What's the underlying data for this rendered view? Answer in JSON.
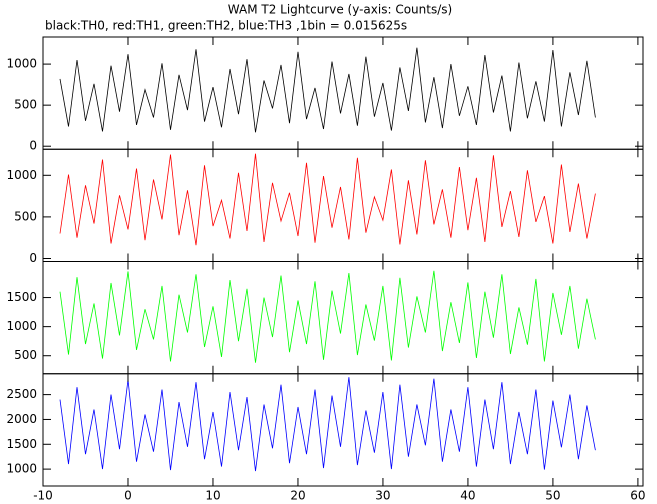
{
  "chart_data": {
    "type": "line",
    "title": "WAM T2 Lightcurve (y-axis: Counts/s)",
    "subtitle": "black:TH0, red:TH1, green:TH2, blue:TH3 ,1bin = 0.015625s",
    "xlim": [
      -10,
      60.6
    ],
    "xticks": [
      -10,
      0,
      10,
      20,
      30,
      40,
      50,
      60
    ],
    "x": [
      -8,
      -7,
      -6,
      -5,
      -4,
      -3,
      -2,
      -1,
      0,
      1,
      2,
      3,
      4,
      5,
      6,
      7,
      8,
      9,
      10,
      11,
      12,
      13,
      14,
      15,
      16,
      17,
      18,
      19,
      20,
      21,
      22,
      23,
      24,
      25,
      26,
      27,
      28,
      29,
      30,
      31,
      32,
      33,
      34,
      35,
      36,
      37,
      38,
      39,
      40,
      41,
      42,
      43,
      44,
      45,
      46,
      47,
      48,
      49,
      50,
      51,
      52,
      53,
      54,
      55
    ],
    "series": [
      {
        "color": "#000000",
        "ylim": [
          -37,
          1330
        ],
        "yticks": [
          0,
          500,
          1000
        ],
        "values": [
          820,
          240,
          1050,
          310,
          760,
          180,
          980,
          420,
          1120,
          260,
          690,
          350,
          1010,
          200,
          870,
          440,
          1180,
          300,
          720,
          230,
          940,
          390,
          1060,
          170,
          800,
          460,
          990,
          280,
          1150,
          330,
          710,
          210,
          1030,
          400,
          880,
          250,
          1090,
          360,
          770,
          190,
          960,
          430,
          1200,
          290,
          840,
          220,
          1000,
          370,
          730,
          260,
          1110,
          410,
          860,
          180,
          1020,
          340,
          790,
          300,
          1170,
          240,
          900,
          380,
          1040,
          350
        ]
      },
      {
        "color": "#ff0000",
        "ylim": [
          -36,
          1313
        ],
        "yticks": [
          0,
          500,
          1000
        ],
        "values": [
          300,
          1010,
          250,
          880,
          420,
          1190,
          180,
          760,
          350,
          1080,
          220,
          950,
          470,
          1250,
          280,
          820,
          160,
          1120,
          390,
          700,
          240,
          1030,
          330,
          1260,
          200,
          910,
          450,
          790,
          270,
          1150,
          190,
          990,
          370,
          860,
          230,
          1210,
          310,
          740,
          460,
          1070,
          170,
          940,
          290,
          1180,
          410,
          830,
          250,
          1100,
          340,
          970,
          200,
          1240,
          380,
          810,
          260,
          1060,
          440,
          750,
          180,
          1130,
          320,
          900,
          240,
          780
        ]
      },
      {
        "color": "#00ff00",
        "ylim": [
          190,
          2120
        ],
        "yticks": [
          500,
          1000,
          1500
        ],
        "values": [
          1600,
          520,
          1850,
          700,
          1400,
          450,
          1750,
          850,
          1950,
          600,
          1300,
          780,
          1700,
          400,
          1550,
          900,
          1900,
          650,
          1350,
          480,
          1800,
          750,
          1650,
          380,
          1500,
          820,
          1880,
          560,
          1450,
          700,
          1780,
          430,
          1620,
          880,
          1920,
          510,
          1380,
          760,
          1700,
          420,
          1840,
          640,
          1520,
          900,
          1960,
          580,
          1420,
          720,
          1760,
          460,
          1600,
          810,
          1900,
          530,
          1330,
          690,
          1820,
          400,
          1580,
          860,
          1700,
          620,
          1480,
          780
        ]
      },
      {
        "color": "#0000ff",
        "ylim": [
          660,
          2920
        ],
        "yticks": [
          1000,
          1500,
          2000,
          2500
        ],
        "values": [
          2400,
          1100,
          2650,
          1300,
          2200,
          1000,
          2500,
          1400,
          2800,
          1150,
          2100,
          1350,
          2600,
          980,
          2350,
          1450,
          2750,
          1200,
          2150,
          1050,
          2550,
          1380,
          2450,
          960,
          2300,
          1420,
          2700,
          1120,
          2250,
          1300,
          2600,
          1020,
          2480,
          1450,
          2850,
          1080,
          2180,
          1330,
          2550,
          1000,
          2700,
          1250,
          2300,
          1480,
          2820,
          1150,
          2200,
          1350,
          2650,
          1050,
          2400,
          1400,
          2750,
          1100,
          2150,
          1300,
          2600,
          990,
          2380,
          1440,
          2500,
          1200,
          2280,
          1380
        ]
      }
    ]
  }
}
